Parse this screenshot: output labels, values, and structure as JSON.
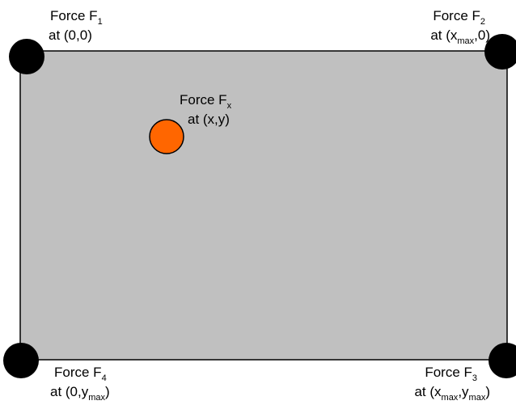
{
  "nodes": [
    {
      "lines": [
        [
          "Force F",
          "1"
        ],
        [
          "at (0,0)"
        ]
      ]
    },
    {
      "lines": [
        [
          "Force F",
          "2"
        ],
        [
          "at (x",
          "max",
          ",0)"
        ]
      ]
    },
    {
      "lines": [
        [
          "Force F",
          "x"
        ],
        [
          "at (x,y)"
        ]
      ]
    },
    {
      "lines": [
        [
          "Force F",
          "4"
        ],
        [
          "at (0,y",
          "max",
          ")"
        ]
      ]
    },
    {
      "lines": [
        [
          "Force F",
          "3"
        ],
        [
          "at (x",
          "max",
          ",y",
          "max",
          ")"
        ]
      ]
    }
  ]
}
